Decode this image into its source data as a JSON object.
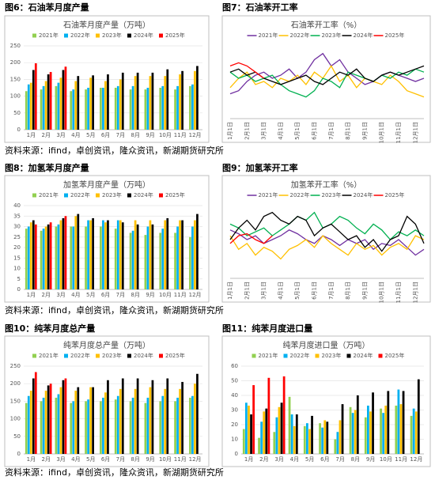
{
  "captions": [
    "图6：石油苯月度产量",
    "图7：石油苯开工率",
    "图8：加氢苯月度产量",
    "图9：加氢苯开工率",
    "图10：纯苯月度总产量",
    "图11：纯苯月度进口量"
  ],
  "sources": [
    "资料来源：ifind，卓创资讯，隆众资讯，新湖期货研究所",
    "资料来源：ifind，卓创资讯，隆众资讯，新湖期货研究所",
    "资料来源：ifind，卓创资讯，隆众资讯，新湖期货研究所"
  ],
  "chart_data": [
    {
      "type": "bar",
      "title": "石油苯月度产量（万吨）",
      "categories": [
        "1月",
        "2月",
        "3月",
        "4月",
        "5月",
        "6月",
        "7月",
        "8月",
        "9月",
        "10月",
        "11月",
        "12月"
      ],
      "ylim": [
        0,
        250
      ],
      "yticks": [
        0,
        50,
        100,
        150,
        200,
        250
      ],
      "series": [
        {
          "name": "2021年",
          "color": "#92d050",
          "values": [
            115,
            120,
            130,
            115,
            120,
            125,
            125,
            120,
            120,
            125,
            120,
            130
          ]
        },
        {
          "name": "2022年",
          "color": "#00b0f0",
          "values": [
            135,
            130,
            140,
            120,
            125,
            125,
            130,
            130,
            125,
            130,
            130,
            135
          ]
        },
        {
          "name": "2023年",
          "color": "#ffc000",
          "values": [
            140,
            145,
            155,
            145,
            155,
            145,
            150,
            160,
            160,
            160,
            165,
            175
          ]
        },
        {
          "name": "2024年",
          "color": "#000000",
          "values": [
            178,
            165,
            178,
            160,
            162,
            165,
            170,
            170,
            170,
            180,
            175,
            190
          ]
        },
        {
          "name": "2025年",
          "color": "#ff0000",
          "values": [
            198,
            172,
            188,
            null,
            null,
            null,
            null,
            null,
            null,
            null,
            null,
            null
          ]
        }
      ]
    },
    {
      "type": "line",
      "title": "石油苯开工率（%）",
      "categories": [
        "1月1日",
        null,
        "2月1日",
        null,
        "3月1日",
        null,
        "4月1日",
        null,
        "5月1日",
        null,
        "6月1日",
        null,
        "7月1日",
        null,
        "8月1日",
        null,
        "9月1日",
        null,
        "10月1日",
        null,
        "11月1日",
        null,
        "12月1日",
        null
      ],
      "ylim": [
        65,
        90
      ],
      "series": [
        {
          "name": "2021年",
          "color": "#7030a0",
          "values": [
            73,
            74,
            77,
            79,
            80,
            78,
            79,
            81,
            78,
            80,
            84,
            86,
            82,
            84,
            80,
            78,
            76,
            77,
            79,
            80,
            79,
            78,
            77,
            78
          ]
        },
        {
          "name": "2022年",
          "color": "#ffc000",
          "values": [
            75,
            78,
            80,
            76,
            77,
            75,
            78,
            77,
            79,
            76,
            80,
            78,
            82,
            77,
            79,
            75,
            78,
            77,
            76,
            79,
            77,
            74,
            73,
            72
          ]
        },
        {
          "name": "2023年",
          "color": "#00b050",
          "values": [
            80,
            78,
            79,
            77,
            78,
            79,
            76,
            74,
            73,
            72,
            74,
            78,
            77,
            75,
            80,
            79,
            78,
            77,
            79,
            78,
            80,
            79,
            81,
            80
          ]
        },
        {
          "name": "2024年",
          "color": "#000000",
          "values": [
            80,
            81,
            79,
            80,
            78,
            77,
            76,
            77,
            78,
            79,
            77,
            76,
            78,
            80,
            79,
            81,
            78,
            77,
            79,
            80,
            79,
            80,
            81,
            82
          ]
        },
        {
          "name": "2025年",
          "color": "#ff0000",
          "values": [
            82,
            83,
            82,
            80,
            78,
            null,
            null,
            null,
            null,
            null,
            null,
            null,
            null,
            null,
            null,
            null,
            null,
            null,
            null,
            null,
            null,
            null,
            null,
            null
          ]
        }
      ]
    },
    {
      "type": "bar",
      "title": "加氢苯月度产量（万吨）",
      "categories": [
        "1月",
        "2月",
        "3月",
        "4月",
        "5月",
        "6月",
        "7月",
        "8月",
        "9月",
        "10月",
        "11月",
        "12月"
      ],
      "ylim": [
        0,
        40
      ],
      "yticks": [
        0,
        5,
        10,
        15,
        20,
        25,
        30,
        35,
        40
      ],
      "series": [
        {
          "name": "2021年",
          "color": "#92d050",
          "values": [
            29,
            28,
            30,
            30,
            30,
            30,
            29,
            27,
            26,
            27,
            27,
            25
          ]
        },
        {
          "name": "2022年",
          "color": "#00b0f0",
          "values": [
            30,
            29,
            31,
            30,
            33,
            33,
            33,
            28,
            30,
            29,
            30,
            30
          ]
        },
        {
          "name": "2023年",
          "color": "#ffc000",
          "values": [
            32,
            30,
            33,
            35,
            33,
            32,
            33,
            33,
            33,
            33,
            33,
            33
          ]
        },
        {
          "name": "2024年",
          "color": "#000000",
          "values": [
            33,
            31,
            34,
            36,
            34,
            33,
            32,
            31,
            31,
            34,
            33,
            36
          ]
        },
        {
          "name": "2025年",
          "color": "#ff0000",
          "values": [
            31,
            32,
            35,
            null,
            null,
            null,
            null,
            null,
            null,
            null,
            null,
            null
          ]
        }
      ]
    },
    {
      "type": "line",
      "title": "加氢苯开工率（%）",
      "categories": [
        "1月1日",
        null,
        "2月1日",
        null,
        "3月1日",
        null,
        "4月1日",
        null,
        "5月1日",
        null,
        "6月1日",
        null,
        "7月1日",
        null,
        "8月1日",
        null,
        "9月1日",
        null,
        "10月1日",
        null,
        "11月1日",
        null,
        "12月1日",
        null
      ],
      "ylim": [
        40,
        80
      ],
      "series": [
        {
          "name": "2021年",
          "color": "#7030a0",
          "values": [
            65,
            63,
            60,
            62,
            58,
            60,
            62,
            65,
            63,
            60,
            58,
            62,
            60,
            57,
            60,
            58,
            60,
            55,
            58,
            57,
            60,
            56,
            52,
            55
          ]
        },
        {
          "name": "2022年",
          "color": "#ffc000",
          "values": [
            62,
            55,
            58,
            52,
            56,
            54,
            50,
            55,
            57,
            60,
            56,
            62,
            58,
            55,
            52,
            58,
            55,
            57,
            52,
            56,
            58,
            55,
            62,
            60
          ]
        },
        {
          "name": "2023年",
          "color": "#00b050",
          "values": [
            68,
            66,
            62,
            64,
            66,
            62,
            65,
            68,
            72,
            70,
            74,
            66,
            68,
            72,
            70,
            66,
            63,
            68,
            65,
            60,
            64,
            62,
            65,
            62
          ]
        },
        {
          "name": "2024年",
          "color": "#000000",
          "values": [
            60,
            66,
            70,
            65,
            72,
            74,
            70,
            68,
            72,
            70,
            62,
            66,
            68,
            64,
            60,
            62,
            56,
            60,
            54,
            60,
            62,
            72,
            68,
            58
          ]
        },
        {
          "name": "2025年",
          "color": "#ff0000",
          "values": [
            58,
            62,
            63,
            60,
            58,
            62,
            null,
            null,
            null,
            null,
            null,
            null,
            null,
            null,
            null,
            null,
            null,
            null,
            null,
            null,
            null,
            null,
            null,
            null
          ]
        }
      ]
    },
    {
      "type": "bar",
      "title": "纯苯月度总产量（万吨）",
      "categories": [
        "1月",
        "2月",
        "3月",
        "4月",
        "5月",
        "6月",
        "7月",
        "8月",
        "9月",
        "10月",
        "11月",
        "12月"
      ],
      "ylim": [
        0,
        250
      ],
      "yticks": [
        0,
        50,
        100,
        150,
        200,
        250
      ],
      "series": [
        {
          "name": "2021年",
          "color": "#92d050",
          "values": [
            145,
            150,
            160,
            145,
            150,
            150,
            155,
            150,
            145,
            150,
            150,
            160
          ]
        },
        {
          "name": "2022年",
          "color": "#00b0f0",
          "values": [
            165,
            160,
            170,
            150,
            155,
            160,
            165,
            160,
            160,
            165,
            160,
            165
          ]
        },
        {
          "name": "2023年",
          "color": "#ffc000",
          "values": [
            180,
            180,
            190,
            180,
            190,
            175,
            185,
            185,
            190,
            185,
            185,
            200
          ]
        },
        {
          "name": "2024年",
          "color": "#000000",
          "values": [
            215,
            195,
            210,
            190,
            190,
            210,
            215,
            215,
            210,
            215,
            205,
            228
          ]
        },
        {
          "name": "2025年",
          "color": "#ff0000",
          "values": [
            233,
            200,
            215,
            null,
            null,
            null,
            null,
            null,
            null,
            null,
            null,
            null
          ]
        }
      ]
    },
    {
      "type": "bar",
      "title": "纯苯月度进口量（万吨）",
      "categories": [
        "1月",
        "2月",
        "3月",
        "4月",
        "5月",
        "6月",
        "7月",
        "8月",
        "9月",
        "10月",
        "11月",
        "12月"
      ],
      "ylim": [
        0,
        60
      ],
      "yticks": [
        0,
        10,
        20,
        30,
        40,
        50,
        60
      ],
      "series": [
        {
          "name": "2021年",
          "color": "#92d050",
          "values": [
            17,
            11,
            15,
            39,
            19,
            21,
            10,
            32,
            25,
            31,
            33,
            26
          ]
        },
        {
          "name": "2022年",
          "color": "#00b0f0",
          "values": [
            35,
            22,
            25,
            27,
            21,
            18,
            15,
            28,
            33,
            28,
            44,
            31
          ]
        },
        {
          "name": "2023年",
          "color": "#ffc000",
          "values": [
            33,
            29,
            32,
            19,
            17,
            23,
            23,
            30,
            29,
            33,
            34,
            29
          ]
        },
        {
          "name": "2024年",
          "color": "#000000",
          "values": [
            27,
            31,
            35,
            27,
            26,
            22,
            34,
            40,
            42,
            43,
            43,
            51
          ]
        },
        {
          "name": "2025年",
          "color": "#ff0000",
          "values": [
            47,
            52,
            53,
            null,
            null,
            null,
            null,
            null,
            null,
            null,
            null,
            null
          ]
        }
      ]
    }
  ]
}
